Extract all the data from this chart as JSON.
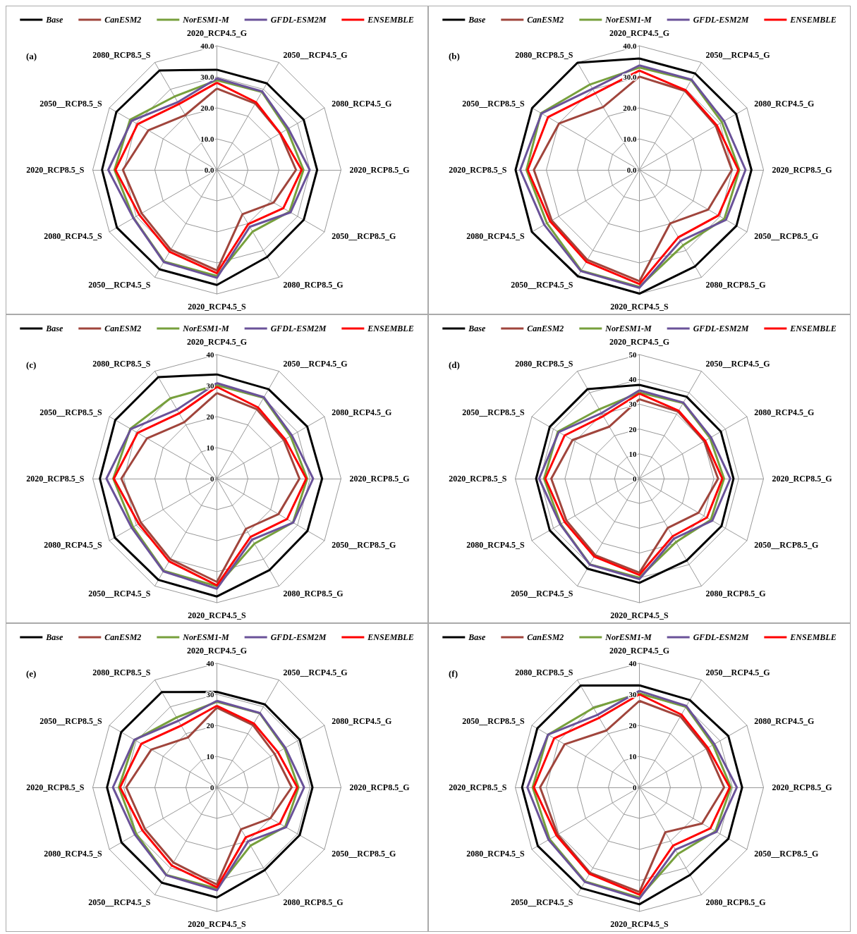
{
  "chart_data": [
    {
      "type": "radar",
      "annotations": [
        "(a)"
      ],
      "categories": [
        "2020_RCP4.5_G",
        "2050__RCP4.5_G",
        "2080_RCP4.5_G",
        "2020_RCP8.5_G",
        "2050__RCP8.5_G",
        "2080_RCP8.5_G",
        "2020_RCP4.5_S",
        "2050__RCP4.5_S",
        "2080_RCP4.5_S",
        "2020_RCP8.5_S",
        "2050__RCP8.5_S",
        "2080_RCP8.5_S"
      ],
      "ylim": [
        0,
        40
      ],
      "yticks": [
        {
          "value": 0,
          "label": "0.0"
        },
        {
          "value": 10,
          "label": "10.0"
        },
        {
          "value": 20,
          "label": "20.0"
        },
        {
          "value": 30,
          "label": "30.0"
        },
        {
          "value": 40,
          "label": "40.0"
        }
      ],
      "grid": true,
      "legend": "top",
      "marker": "none",
      "series": [
        {
          "name": "Base",
          "color": "#000000",
          "values": [
            32.3,
            32.2,
            32.3,
            32.3,
            32.3,
            32.4,
            37.1,
            37,
            37.2,
            37,
            37.4,
            37
          ]
        },
        {
          "name": "CanESM2",
          "color": "#a0453c",
          "values": [
            26.2,
            24.7,
            23.5,
            25.5,
            21.1,
            16.5,
            32.4,
            29.7,
            28,
            30.3,
            25.5,
            20.4
          ]
        },
        {
          "name": "NorESM1-M",
          "color": "#77a03c",
          "values": [
            28.9,
            29,
            26.1,
            27.9,
            27,
            23,
            34.2,
            34.1,
            31,
            33,
            32.3,
            27.3
          ]
        },
        {
          "name": "GFDL-ESM2M",
          "color": "#6a5299",
          "values": [
            29.5,
            29.2,
            26.6,
            29.9,
            27.4,
            21.2,
            34.8,
            34.3,
            31.1,
            35,
            31.7,
            25.2
          ]
        },
        {
          "name": "ENSEMBLE",
          "color": "#ff0000",
          "values": [
            28.1,
            25.2,
            23.6,
            27.3,
            24.7,
            20.2,
            33.3,
            30.5,
            28.9,
            32.7,
            29.5,
            24.5
          ]
        }
      ]
    },
    {
      "type": "radar",
      "annotations": [
        "(b)"
      ],
      "categories": [
        "2020_RCP4.5_G",
        "2050__RCP4.5_G",
        "2080_RCP4.5_G",
        "2020_RCP8.5_G",
        "2050__RCP8.5_G",
        "2080_RCP8.5_G",
        "2020_RCP4.5_S",
        "2050__RCP4.5_S",
        "2080_RCP4.5_S",
        "2020_RCP8.5_S",
        "2050__RCP8.5_S",
        "2080_RCP8.5_S"
      ],
      "ylim": [
        0,
        40
      ],
      "yticks": [
        {
          "value": 0,
          "label": "0.0"
        },
        {
          "value": 10,
          "label": "10.0"
        },
        {
          "value": 20,
          "label": "20.0"
        },
        {
          "value": 30,
          "label": "30.0"
        },
        {
          "value": 40,
          "label": "40.0"
        }
      ],
      "grid": true,
      "legend": "top",
      "marker": "none",
      "series": [
        {
          "name": "Base",
          "color": "#000000",
          "values": [
            35.9,
            35.9,
            36,
            36.1,
            36.1,
            35.9,
            39.9,
            39.6,
            40,
            39.9,
            39.9,
            39.9
          ]
        },
        {
          "name": "CanESM2",
          "color": "#a0453c",
          "values": [
            30.1,
            29.4,
            28.4,
            29.8,
            25.6,
            19.9,
            35.9,
            33.5,
            32.6,
            34,
            29.9,
            23.4
          ]
        },
        {
          "name": "NorESM1-M",
          "color": "#77a03c",
          "values": [
            33,
            33.4,
            30.7,
            32.2,
            31.6,
            28.1,
            37.7,
            37.5,
            34.4,
            36.4,
            36.6,
            31.8
          ]
        },
        {
          "name": "GFDL-ESM2M",
          "color": "#6a5299",
          "values": [
            33.7,
            33.6,
            31.5,
            34.2,
            32.2,
            26.5,
            38,
            37.7,
            35.4,
            38.4,
            36.4,
            30.2
          ]
        },
        {
          "name": "ENSEMBLE",
          "color": "#ff0000",
          "values": [
            32,
            29.7,
            28.8,
            31.9,
            29.4,
            25.1,
            36.8,
            34.2,
            33.2,
            36,
            34,
            28.5
          ]
        }
      ]
    },
    {
      "type": "radar",
      "annotations": [
        "(c)"
      ],
      "categories": [
        "2020_RCP4.5_G",
        "2050__RCP4.5_G",
        "2080_RCP4.5_G",
        "2020_RCP8.5_G",
        "2050__RCP8.5_G",
        "2080_RCP8.5_G",
        "2020_RCP4.5_S",
        "2050__RCP4.5_S",
        "2080_RCP4.5_S",
        "2020_RCP8.5_S",
        "2050__RCP8.5_S",
        "2080_RCP8.5_S"
      ],
      "ylim": [
        0,
        40
      ],
      "yticks": [
        0,
        10,
        20,
        30,
        40
      ],
      "grid": true,
      "legend": "top",
      "marker": "none",
      "series": [
        {
          "name": "Base",
          "color": "#000000",
          "values": [
            33.6,
            33.3,
            33.6,
            33.9,
            33.7,
            34,
            38,
            37.7,
            38,
            37.7,
            37.8,
            37.8
          ]
        },
        {
          "name": "CanESM2",
          "color": "#a0453c",
          "values": [
            27.6,
            25.8,
            24.9,
            26.6,
            22.9,
            18.7,
            33.3,
            30,
            28.3,
            30.8,
            26,
            21
          ]
        },
        {
          "name": "NorESM1-M",
          "color": "#77a03c",
          "values": [
            30.1,
            30.1,
            27.4,
            29.1,
            28.3,
            24.2,
            34.7,
            34.3,
            31.2,
            33.4,
            32.2,
            29.9
          ]
        },
        {
          "name": "GFDL-ESM2M",
          "color": "#6a5299",
          "values": [
            30.8,
            30.3,
            27.9,
            31,
            28.4,
            22.7,
            35.5,
            34.5,
            31.7,
            35.6,
            32,
            25.7
          ]
        },
        {
          "name": "ENSEMBLE",
          "color": "#ff0000",
          "values": [
            29.6,
            26.5,
            25.4,
            28.8,
            26.1,
            21.7,
            34.4,
            30.8,
            29.1,
            33.2,
            29.5,
            24.3
          ]
        }
      ]
    },
    {
      "type": "radar",
      "annotations": [
        "(d)"
      ],
      "categories": [
        "2020_RCP4.5_G",
        "2050__RCP4.5_G",
        "2080_RCP4.5_G",
        "2020_RCP8.5_G",
        "2050__RCP8.5_G",
        "2080_RCP8.5_G",
        "2020_RCP4.5_S",
        "2050__RCP4.5_S",
        "2080_RCP4.5_S",
        "2020_RCP8.5_S",
        "2050__RCP8.5_S",
        "2080_RCP8.5_S"
      ],
      "ylim": [
        0,
        50
      ],
      "yticks": [
        0,
        10,
        20,
        30,
        40,
        50
      ],
      "grid": true,
      "legend": "top",
      "marker": "none",
      "series": [
        {
          "name": "Base",
          "color": "#000000",
          "values": [
            37.8,
            38.1,
            37.9,
            37.9,
            38.2,
            38.1,
            42,
            41.9,
            41.7,
            41.6,
            41.7,
            41.7
          ]
        },
        {
          "name": "CanESM2",
          "color": "#a0453c",
          "values": [
            32,
            31.2,
            30.1,
            31.7,
            27.5,
            22.9,
            37.9,
            35.6,
            33.9,
            35.5,
            31.1,
            24.2
          ]
        },
        {
          "name": "NorESM1-M",
          "color": "#77a03c",
          "values": [
            34.7,
            35.2,
            32.8,
            34.1,
            33.2,
            29.5,
            39.9,
            39.9,
            36.6,
            38.4,
            37.9,
            32.3
          ]
        },
        {
          "name": "GFDL-ESM2M",
          "color": "#6a5299",
          "values": [
            35.6,
            35.4,
            33.3,
            36.6,
            33.9,
            27.9,
            40.5,
            40,
            36.8,
            40.4,
            37.5,
            30.5
          ]
        },
        {
          "name": "ENSEMBLE",
          "color": "#ff0000",
          "values": [
            34.3,
            31.6,
            30.6,
            33.4,
            31.4,
            26.8,
            38.8,
            36.3,
            34.8,
            37.9,
            34.8,
            29.1
          ]
        }
      ]
    },
    {
      "type": "radar",
      "annotations": [
        "(e)"
      ],
      "categories": [
        "2020_RCP4.5_G",
        "2050__RCP4.5_G",
        "2080_RCP4.5_G",
        "2020_RCP8.5_G",
        "2050__RCP8.5_G",
        "2080_RCP8.5_G",
        "2020_RCP4.5_S",
        "2050__RCP4.5_S",
        "2080_RCP4.5_S",
        "2020_RCP8.5_S",
        "2050__RCP8.5_S",
        "2080_RCP8.5_S"
      ],
      "ylim": [
        0,
        40
      ],
      "yticks": [
        0,
        10,
        20,
        30,
        40
      ],
      "grid": true,
      "legend": "top",
      "marker": "none",
      "series": [
        {
          "name": "Base",
          "color": "#000000",
          "values": [
            30.8,
            30.9,
            30.8,
            30.8,
            30.8,
            30.8,
            35.5,
            35.5,
            35.5,
            35.4,
            35.6,
            35.5
          ]
        },
        {
          "name": "CanESM2",
          "color": "#a0453c",
          "values": [
            25.7,
            23.2,
            21.5,
            24.1,
            19.9,
            15.6,
            31.3,
            28,
            26.8,
            29.2,
            24.4,
            18.6
          ]
        },
        {
          "name": "NorESM1-M",
          "color": "#77a03c",
          "values": [
            27.6,
            27.6,
            25.2,
            26.3,
            25.4,
            21.7,
            32.6,
            32.6,
            30,
            31.6,
            30.6,
            26
          ]
        },
        {
          "name": "GFDL-ESM2M",
          "color": "#6a5299",
          "values": [
            27.9,
            27.7,
            25.5,
            28.1,
            25.7,
            20.1,
            33.2,
            32.7,
            30.5,
            33.5,
            30.7,
            24.8
          ]
        },
        {
          "name": "ENSEMBLE",
          "color": "#ff0000",
          "values": [
            26.3,
            23.8,
            22.7,
            25.9,
            23.4,
            18.6,
            32.2,
            29.1,
            27.7,
            31.2,
            28.1,
            23
          ]
        }
      ]
    },
    {
      "type": "radar",
      "annotations": [
        "(f)"
      ],
      "categories": [
        "2020_RCP4.5_G",
        "2050__RCP4.5_G",
        "2080_RCP4.5_G",
        "2020_RCP8.5_G",
        "2050__RCP8.5_G",
        "2080_RCP8.5_G",
        "2020_RCP4.5_S",
        "2050__RCP4.5_S",
        "2080_RCP4.5_S",
        "2020_RCP8.5_S",
        "2050__RCP8.5_S",
        "2080_RCP8.5_S"
      ],
      "ylim": [
        0,
        40
      ],
      "yticks": [
        0,
        10,
        20,
        30,
        40
      ],
      "grid": true,
      "legend": "top",
      "marker": "none",
      "series": [
        {
          "name": "Base",
          "color": "#000000",
          "values": [
            32.9,
            32.5,
            33.1,
            33.1,
            33.1,
            32.6,
            37.7,
            37.5,
            37.8,
            37.8,
            38,
            37.9
          ]
        },
        {
          "name": "CanESM2",
          "color": "#a0453c",
          "values": [
            27.9,
            26.4,
            25,
            27.3,
            23.3,
            16.7,
            33.7,
            31.8,
            30.4,
            32,
            27.8,
            21.2
          ]
        },
        {
          "name": "NorESM1-M",
          "color": "#77a03c",
          "values": [
            30.3,
            30,
            27.4,
            29.5,
            28.3,
            24.8,
            35.5,
            35,
            33.4,
            34.4,
            34,
            29.6
          ]
        },
        {
          "name": "GFDL-ESM2M",
          "color": "#6a5299",
          "values": [
            31.1,
            30.3,
            27.9,
            31.4,
            28.7,
            23.2,
            35.9,
            35.2,
            33.8,
            36.1,
            34,
            27
          ]
        },
        {
          "name": "ENSEMBLE",
          "color": "#ff0000",
          "values": [
            30,
            27.1,
            25.5,
            29.1,
            26.4,
            21.7,
            34.6,
            32.2,
            30.9,
            34,
            31.7,
            25.9
          ]
        }
      ]
    }
  ]
}
